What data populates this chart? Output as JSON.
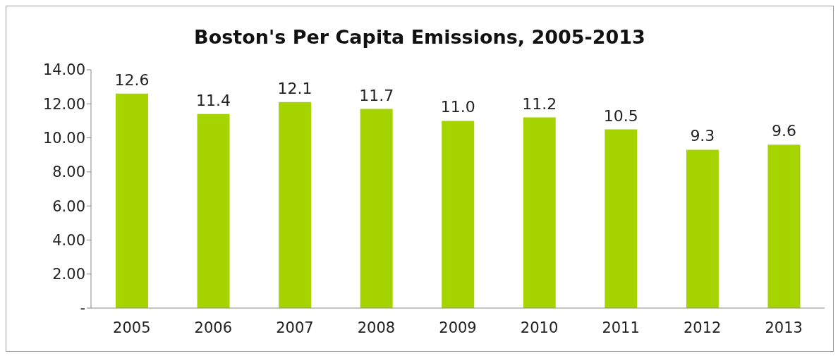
{
  "chart_data": {
    "type": "bar",
    "title": "Boston's Per Capita Emissions, 2005-2013",
    "categories": [
      "2005",
      "2006",
      "2007",
      "2008",
      "2009",
      "2010",
      "2011",
      "2012",
      "2013"
    ],
    "values": [
      12.6,
      11.4,
      12.1,
      11.7,
      11.0,
      11.2,
      10.5,
      9.3,
      9.6
    ],
    "value_labels": [
      "12.6",
      "11.4",
      "12.1",
      "11.7",
      "11.0",
      "11.2",
      "10.5",
      "9.3",
      "9.6"
    ],
    "color": "#a5d400",
    "ylim": [
      0,
      14
    ],
    "yticks": [
      {
        "value": 0,
        "label": "-"
      },
      {
        "value": 2,
        "label": "2.00"
      },
      {
        "value": 4,
        "label": "4.00"
      },
      {
        "value": 6,
        "label": "6.00"
      },
      {
        "value": 8,
        "label": "8.00"
      },
      {
        "value": 10,
        "label": "10.00"
      },
      {
        "value": 12,
        "label": "12.00"
      },
      {
        "value": 14,
        "label": "14.00"
      }
    ],
    "grid": false,
    "legend": false
  }
}
